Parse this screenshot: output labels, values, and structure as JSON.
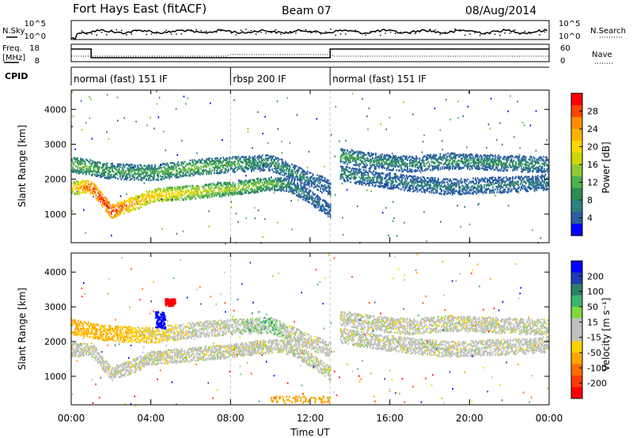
{
  "header": {
    "station": "Fort Hays East (fitACF)",
    "beam": "Beam 07",
    "date": "08/Aug/2014"
  },
  "strip_labels": {
    "nsky": "N.Sky",
    "nsearch": "N.Search",
    "freq_line1": "Freq.",
    "freq_line2": "[MHz]",
    "nave": "Nave",
    "cpid": "CPID"
  },
  "noise_axis": {
    "left_ticks": [
      "10^5",
      "10^0"
    ],
    "right_ticks": [
      "10^5",
      "10^0"
    ]
  },
  "freq_axis": {
    "left_ticks": [
      "18",
      "8"
    ],
    "right_ticks": [
      "60",
      "0"
    ]
  },
  "cpid_segments": [
    {
      "label": "normal (fast) 151 IF",
      "start_hour": 0
    },
    {
      "label": "rbsp 200 IF",
      "start_hour": 8
    },
    {
      "label": "normal (fast) 151 IF",
      "start_hour": 13
    }
  ],
  "power_colorbar": {
    "label": "Power [dB]",
    "ticks": [
      "28",
      "24",
      "20",
      "16",
      "12",
      "8",
      "4"
    ],
    "colors": [
      "#ff0000",
      "#ff4500",
      "#ff8c00",
      "#ffb300",
      "#ffd700",
      "#c8d800",
      "#8fc833",
      "#4fb04f",
      "#2e8b57",
      "#2f7f7f",
      "#2b5fa0",
      "#0000ff"
    ]
  },
  "velocity_colorbar": {
    "label": "Velocity [m s⁻¹]",
    "ticks": [
      "200",
      "100",
      "50",
      "15",
      "-15",
      "-50",
      "-100",
      "-200"
    ],
    "colors": [
      "#0000ff",
      "#1e3cb4",
      "#2e7d6a",
      "#3cb371",
      "#7fd83f",
      "#c0c0c0",
      "#c0c0c0",
      "#ffd400",
      "#ffa500",
      "#ff7000",
      "#ff3c00",
      "#ff0000"
    ]
  },
  "x_axis": {
    "label": "Time UT",
    "ticks": [
      "00:00",
      "04:00",
      "08:00",
      "12:00",
      "16:00",
      "20:00",
      "00:00"
    ],
    "range_hours": [
      0,
      24
    ]
  },
  "chart_data": [
    {
      "type": "heatmap",
      "title": "",
      "xlabel": "Time UT",
      "ylabel": "Slant Range [km]",
      "xlim": [
        0,
        24
      ],
      "ylim": [
        180,
        4550
      ],
      "yticks": [
        "1000",
        "2000",
        "3000",
        "4000"
      ],
      "colorbar": "Power [dB]",
      "bands": [
        {
          "x": [
            0,
            1,
            2,
            3,
            4,
            6,
            8,
            10,
            11,
            12,
            13
          ],
          "y": [
            1780,
            1800,
            1100,
            1300,
            1550,
            1650,
            1750,
            1900,
            1850,
            1500,
            1100
          ],
          "value": [
            18,
            26,
            28,
            22,
            20,
            16,
            14,
            12,
            8,
            6,
            4
          ]
        },
        {
          "x": [
            0,
            2,
            4,
            6,
            8,
            10,
            11,
            12,
            13
          ],
          "y": [
            2450,
            2250,
            2200,
            2350,
            2450,
            2500,
            2250,
            2000,
            1800
          ],
          "value": [
            12,
            10,
            10,
            12,
            10,
            8,
            8,
            6,
            4
          ]
        },
        {
          "x": [
            13.5,
            15,
            17,
            19,
            21,
            23,
            24
          ],
          "y": [
            2700,
            2550,
            2450,
            2550,
            2500,
            2450,
            2450
          ],
          "value": [
            10,
            8,
            8,
            8,
            8,
            8,
            6
          ]
        },
        {
          "x": [
            13.5,
            15,
            17,
            19,
            21,
            23,
            24
          ],
          "y": [
            2200,
            2050,
            1900,
            1800,
            1850,
            1900,
            1950
          ],
          "value": [
            8,
            6,
            6,
            6,
            6,
            6,
            6
          ]
        }
      ]
    },
    {
      "type": "heatmap",
      "title": "",
      "xlabel": "Time UT",
      "ylabel": "Slant Range [km]",
      "xlim": [
        0,
        24
      ],
      "ylim": [
        180,
        4550
      ],
      "yticks": [
        "1000",
        "2000",
        "3000",
        "4000"
      ],
      "colorbar": "Velocity [m s⁻¹]",
      "bands": [
        {
          "x": [
            0,
            1,
            2,
            3,
            4,
            6,
            8,
            10,
            11,
            12,
            13
          ],
          "y": [
            1780,
            1800,
            1100,
            1300,
            1550,
            1650,
            1750,
            1900,
            1850,
            1500,
            1100
          ],
          "value": [
            0,
            0,
            0,
            0,
            0,
            0,
            0,
            0,
            0,
            0,
            0
          ]
        },
        {
          "x": [
            0,
            2,
            4,
            6,
            8,
            10,
            11,
            12,
            13
          ],
          "y": [
            2450,
            2250,
            2200,
            2350,
            2450,
            2500,
            2250,
            2000,
            1800
          ],
          "value": [
            -40,
            -30,
            -20,
            0,
            0,
            20,
            0,
            0,
            0
          ]
        },
        {
          "x": [
            13.5,
            15,
            17,
            19,
            21,
            23,
            24
          ],
          "y": [
            2700,
            2550,
            2450,
            2550,
            2500,
            2450,
            2450
          ],
          "value": [
            0,
            0,
            0,
            0,
            0,
            0,
            0
          ]
        },
        {
          "x": [
            13.5,
            15,
            17,
            19,
            21,
            23,
            24
          ],
          "y": [
            2200,
            2050,
            1900,
            1800,
            1850,
            1900,
            1950
          ],
          "value": [
            0,
            0,
            0,
            0,
            0,
            0,
            0
          ]
        }
      ],
      "features": [
        {
          "x": [
            4.7,
            5.2
          ],
          "y": [
            3050,
            3250
          ],
          "value": -200
        },
        {
          "x": [
            4.2,
            4.7
          ],
          "y": [
            2400,
            2900
          ],
          "value": 200
        },
        {
          "x": [
            10,
            13
          ],
          "y": [
            250,
            450
          ],
          "value": -60
        }
      ]
    }
  ]
}
